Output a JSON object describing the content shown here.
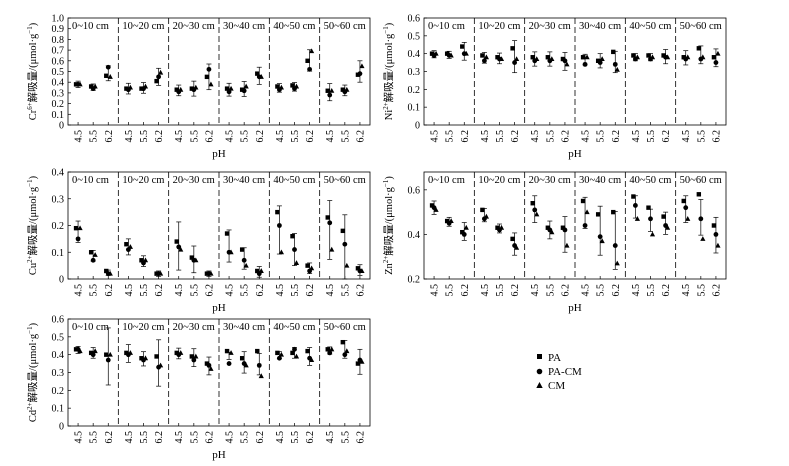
{
  "chart_data": [
    {
      "type": "scatter",
      "id": "cr",
      "ylabel_ion": "Cr",
      "ylabel_charge": "6+",
      "ylabel_rest": "解吸量/(μmol·g",
      "ylabel_exp": "−1",
      "ylabel_close": ")",
      "xlabel": "pH",
      "ylim": [
        0,
        1.0
      ],
      "yticks": [
        "0",
        "0.1",
        "0.2",
        "0.3",
        "0.4",
        "0.5",
        "0.6",
        "0.7",
        "0.8",
        "0.9",
        "1.0"
      ],
      "ytick_values": [
        0,
        0.1,
        0.2,
        0.3,
        0.4,
        0.5,
        0.6,
        0.7,
        0.8,
        0.9,
        1.0
      ],
      "panels": [
        "0~10 cm",
        "10~20 cm",
        "20~30 cm",
        "30~40 cm",
        "40~50 cm",
        "50~60 cm"
      ],
      "series": [
        {
          "name": "PA",
          "values": [
            [
              0.38,
              0.36,
              0.46
            ],
            [
              0.34,
              0.34,
              0.41
            ],
            [
              0.33,
              0.34,
              0.45
            ],
            [
              0.34,
              0.33,
              0.48
            ],
            [
              0.36,
              0.37,
              0.6
            ],
            [
              0.32,
              0.33,
              0.47
            ]
          ]
        },
        {
          "name": "PA-CM",
          "values": [
            [
              0.38,
              0.34,
              0.54
            ],
            [
              0.33,
              0.34,
              0.45
            ],
            [
              0.31,
              0.33,
              0.52
            ],
            [
              0.31,
              0.32,
              0.45
            ],
            [
              0.33,
              0.34,
              0.52
            ],
            [
              0.28,
              0.31,
              0.48
            ]
          ]
        },
        {
          "name": "CM",
          "values": [
            [
              0.38,
              0.36,
              0.45
            ],
            [
              0.35,
              0.36,
              0.49
            ],
            [
              0.33,
              0.35,
              0.38
            ],
            [
              0.34,
              0.36,
              0.45
            ],
            [
              0.35,
              0.36,
              0.69
            ],
            [
              0.32,
              0.33,
              0.55
            ]
          ]
        }
      ],
      "errors": [
        [
          0.03,
          0.03,
          0.07
        ],
        [
          0.05,
          0.05,
          0.08
        ],
        [
          0.05,
          0.07,
          0.12
        ],
        [
          0.06,
          0.07,
          0.08
        ],
        [
          0.04,
          0.04,
          0.1
        ],
        [
          0.08,
          0.05,
          0.1
        ]
      ]
    },
    {
      "type": "scatter",
      "id": "ni",
      "ylabel_ion": "Ni",
      "ylabel_charge": "2+",
      "ylabel_rest": "解吸量/(μmol·g",
      "ylabel_exp": "−1",
      "ylabel_close": ")",
      "xlabel": "pH",
      "ylim": [
        0,
        0.6
      ],
      "yticks": [
        "0",
        "0.1",
        "0.2",
        "0.3",
        "0.4",
        "0.5",
        "0.6"
      ],
      "ytick_values": [
        0,
        0.1,
        0.2,
        0.3,
        0.4,
        0.5,
        0.6
      ],
      "panels": [
        "0~10 cm",
        "10~20 cm",
        "20~30 cm",
        "30~40 cm",
        "40~50 cm",
        "50~60 cm"
      ],
      "series": [
        {
          "name": "PA",
          "values": [
            [
              0.4,
              0.4,
              0.44
            ],
            [
              0.39,
              0.38,
              0.43
            ],
            [
              0.38,
              0.38,
              0.37
            ],
            [
              0.38,
              0.36,
              0.41
            ],
            [
              0.39,
              0.39,
              0.39
            ],
            [
              0.38,
              0.43,
              0.38
            ]
          ]
        },
        {
          "name": "PA-CM",
          "values": [
            [
              0.39,
              0.39,
              0.4
            ],
            [
              0.36,
              0.37,
              0.35
            ],
            [
              0.36,
              0.36,
              0.36
            ],
            [
              0.34,
              0.35,
              0.34
            ],
            [
              0.37,
              0.37,
              0.38
            ],
            [
              0.37,
              0.37,
              0.35
            ]
          ]
        },
        {
          "name": "CM",
          "values": [
            [
              0.4,
              0.39,
              0.4
            ],
            [
              0.38,
              0.37,
              0.37
            ],
            [
              0.37,
              0.37,
              0.34
            ],
            [
              0.38,
              0.37,
              0.31
            ],
            [
              0.38,
              0.38,
              0.38
            ],
            [
              0.38,
              0.38,
              0.4
            ]
          ]
        }
      ],
      "errors": [
        [
          0.02,
          0.02,
          0.05
        ],
        [
          0.03,
          0.03,
          0.09
        ],
        [
          0.04,
          0.04,
          0.05
        ],
        [
          0.03,
          0.04,
          0.06
        ],
        [
          0.02,
          0.02,
          0.04
        ],
        [
          0.04,
          0.05,
          0.05
        ]
      ]
    },
    {
      "type": "scatter",
      "id": "cu",
      "ylabel_ion": "Cu",
      "ylabel_charge": "2+",
      "ylabel_rest": "解吸量/(μmol·g",
      "ylabel_exp": "−1",
      "ylabel_close": ")",
      "xlabel": "pH",
      "ylim": [
        0,
        0.4
      ],
      "yticks": [
        "0",
        "0.1",
        "0.2",
        "0.3",
        "0.4"
      ],
      "ytick_values": [
        0,
        0.1,
        0.2,
        0.3,
        0.4
      ],
      "panels": [
        "0~10 cm",
        "10~20 cm",
        "20~30 cm",
        "30~40 cm",
        "40~50 cm",
        "50~60 cm"
      ],
      "series": [
        {
          "name": "PA",
          "values": [
            [
              0.19,
              0.1,
              0.03
            ],
            [
              0.13,
              0.07,
              0.02
            ],
            [
              0.14,
              0.08,
              0.02
            ],
            [
              0.17,
              0.11,
              0.03
            ],
            [
              0.25,
              0.16,
              0.05
            ],
            [
              0.23,
              0.18,
              0.04
            ]
          ]
        },
        {
          "name": "PA-CM",
          "values": [
            [
              0.15,
              0.07,
              0.02
            ],
            [
              0.11,
              0.06,
              0.02
            ],
            [
              0.12,
              0.07,
              0.02
            ],
            [
              0.1,
              0.07,
              0.02
            ],
            [
              0.2,
              0.11,
              0.03
            ],
            [
              0.21,
              0.13,
              0.03
            ]
          ]
        },
        {
          "name": "CM",
          "values": [
            [
              0.19,
              0.09,
              0.02
            ],
            [
              0.12,
              0.07,
              0.02
            ],
            [
              0.11,
              0.07,
              0.02
            ],
            [
              0.1,
              0.05,
              0.03
            ],
            [
              0.1,
              0.06,
              0.04
            ],
            [
              0.11,
              0.05,
              0.03
            ]
          ]
        }
      ],
      "errors": [
        [
          0.04,
          0.02,
          0.01
        ],
        [
          0.03,
          0.02,
          0.01
        ],
        [
          0.09,
          0.05,
          0.01
        ],
        [
          0.06,
          0.04,
          0.02
        ],
        [
          0.09,
          0.06,
          0.02
        ],
        [
          0.11,
          0.12,
          0.02
        ]
      ]
    },
    {
      "type": "scatter",
      "id": "zn",
      "ylabel_ion": "Zn",
      "ylabel_charge": "2+",
      "ylabel_rest": "解吸量/(μmol·g",
      "ylabel_exp": "−1",
      "ylabel_close": ")",
      "xlabel": "pH",
      "ylim": [
        0.2,
        0.68
      ],
      "yticks": [
        "0.2",
        "0.4",
        "0.6"
      ],
      "ytick_values": [
        0.2,
        0.4,
        0.6
      ],
      "panels": [
        "0~10 cm",
        "10~20 cm",
        "20~30 cm",
        "30~40 cm",
        "40~50 cm",
        "50~60 cm"
      ],
      "series": [
        {
          "name": "PA",
          "values": [
            [
              0.53,
              0.46,
              0.41
            ],
            [
              0.51,
              0.43,
              0.38
            ],
            [
              0.54,
              0.43,
              0.43
            ],
            [
              0.55,
              0.49,
              0.5
            ],
            [
              0.57,
              0.52,
              0.48
            ],
            [
              0.55,
              0.58,
              0.44
            ]
          ]
        },
        {
          "name": "PA-CM",
          "values": [
            [
              0.52,
              0.45,
              0.4
            ],
            [
              0.47,
              0.42,
              0.35
            ],
            [
              0.51,
              0.42,
              0.42
            ],
            [
              0.44,
              0.39,
              0.35
            ],
            [
              0.53,
              0.47,
              0.44
            ],
            [
              0.52,
              0.47,
              0.4
            ]
          ]
        },
        {
          "name": "CM",
          "values": [
            [
              0.51,
              0.46,
              0.43
            ],
            [
              0.48,
              0.43,
              0.34
            ],
            [
              0.49,
              0.41,
              0.35
            ],
            [
              0.5,
              0.37,
              0.27
            ],
            [
              0.47,
              0.4,
              0.43
            ],
            [
              0.47,
              0.38,
              0.35
            ]
          ]
        }
      ],
      "errors": [
        [
          0.03,
          0.02,
          0.04
        ],
        [
          0.03,
          0.02,
          0.05
        ],
        [
          0.06,
          0.04,
          0.08
        ],
        [
          0.07,
          0.11,
          0.13
        ],
        [
          0.05,
          0.05,
          0.05
        ],
        [
          0.06,
          0.08,
          0.08
        ]
      ]
    },
    {
      "type": "scatter",
      "id": "cd",
      "ylabel_ion": "Cd",
      "ylabel_charge": "2+",
      "ylabel_rest": "解吸量/(μmol·g",
      "ylabel_exp": "−1",
      "ylabel_close": ")",
      "xlabel": "pH",
      "ylim": [
        0,
        0.6
      ],
      "yticks": [
        "0",
        "0.1",
        "0.2",
        "0.3",
        "0.4",
        "0.5",
        "0.6"
      ],
      "ytick_values": [
        0,
        0.1,
        0.2,
        0.3,
        0.4,
        0.5,
        0.6
      ],
      "panels": [
        "0~10 cm",
        "10~20 cm",
        "20~30 cm",
        "30~40 cm",
        "40~50 cm",
        "50~60 cm"
      ],
      "series": [
        {
          "name": "PA",
          "values": [
            [
              0.43,
              0.41,
              0.4
            ],
            [
              0.41,
              0.38,
              0.39
            ],
            [
              0.41,
              0.39,
              0.35
            ],
            [
              0.42,
              0.38,
              0.42
            ],
            [
              0.41,
              0.41,
              0.42
            ],
            [
              0.43,
              0.47,
              0.35
            ]
          ]
        },
        {
          "name": "PA-CM",
          "values": [
            [
              0.43,
              0.4,
              0.37
            ],
            [
              0.4,
              0.37,
              0.33
            ],
            [
              0.4,
              0.37,
              0.34
            ],
            [
              0.35,
              0.35,
              0.34
            ],
            [
              0.38,
              0.43,
              0.38
            ],
            [
              0.41,
              0.4,
              0.37
            ]
          ]
        },
        {
          "name": "CM",
          "values": [
            [
              0.42,
              0.42,
              0.4
            ],
            [
              0.41,
              0.38,
              0.34
            ],
            [
              0.41,
              0.39,
              0.32
            ],
            [
              0.41,
              0.34,
              0.28
            ],
            [
              0.4,
              0.39,
              0.37
            ],
            [
              0.43,
              0.42,
              0.36
            ]
          ]
        }
      ],
      "errors": [
        [
          0.02,
          0.03,
          0.16
        ],
        [
          0.05,
          0.04,
          0.13
        ],
        [
          0.03,
          0.05,
          0.05
        ],
        [
          0.02,
          0.06,
          0.06
        ],
        [
          0.02,
          0.03,
          0.05
        ],
        [
          0.02,
          0.05,
          0.07
        ]
      ]
    }
  ],
  "xticks": [
    "4.5",
    "5.5",
    "6.2"
  ],
  "legend": [
    {
      "marker": "square",
      "label": "PA"
    },
    {
      "marker": "circle",
      "label": "PA-CM"
    },
    {
      "marker": "triangle",
      "label": "CM"
    }
  ]
}
